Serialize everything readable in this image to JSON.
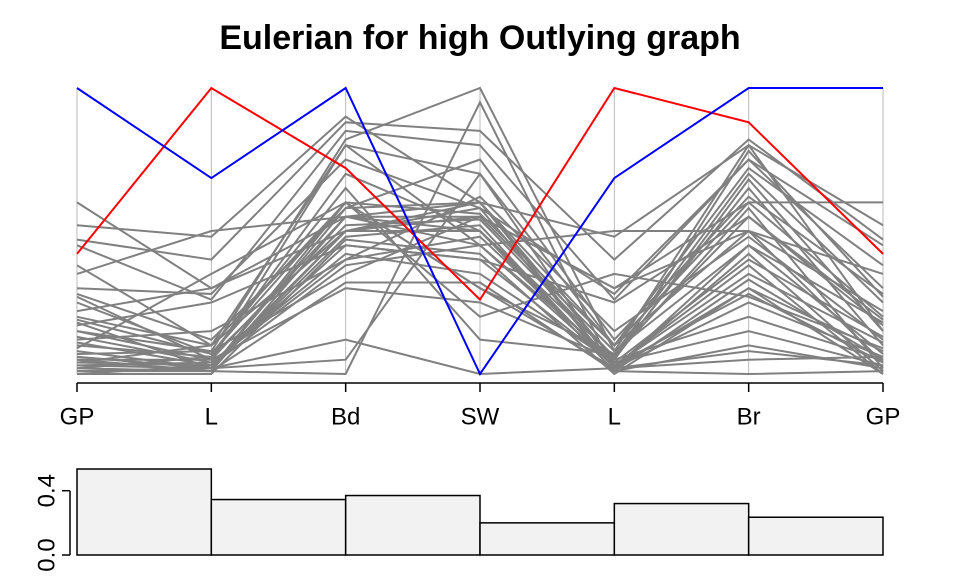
{
  "chart_data": [
    {
      "type": "parallel",
      "title": "Eulerian for high Outlying graph",
      "categories": [
        "GP",
        "L",
        "Bd",
        "SW",
        "L",
        "Br",
        "GP"
      ],
      "ylim": [
        0,
        1
      ],
      "series": [
        {
          "color": "#808080",
          "values": [
            0.6,
            0.3,
            0.5,
            0.55,
            0.3,
            0.6,
            0.6
          ]
        },
        {
          "color": "#808080",
          "values": [
            0.52,
            0.48,
            0.9,
            0.6,
            0.48,
            0.8,
            0.52
          ]
        },
        {
          "color": "#808080",
          "values": [
            0.47,
            0.4,
            0.88,
            0.85,
            0.4,
            0.82,
            0.47
          ]
        },
        {
          "color": "#808080",
          "values": [
            0.38,
            0.1,
            0.8,
            0.7,
            0.1,
            0.72,
            0.38
          ]
        },
        {
          "color": "#808080",
          "values": [
            0.3,
            0.28,
            0.75,
            0.58,
            0.28,
            0.75,
            0.3
          ]
        },
        {
          "color": "#808080",
          "values": [
            0.27,
            0.05,
            0.8,
            0.45,
            0.05,
            0.78,
            0.27
          ]
        },
        {
          "color": "#808080",
          "values": [
            0.25,
            0.07,
            0.6,
            0.3,
            0.07,
            0.7,
            0.25
          ]
        },
        {
          "color": "#808080",
          "values": [
            0.22,
            0.3,
            0.55,
            0.55,
            0.3,
            0.5,
            0.22
          ]
        },
        {
          "color": "#808080",
          "values": [
            0.2,
            0.1,
            0.5,
            0.6,
            0.1,
            0.6,
            0.2
          ]
        },
        {
          "color": "#808080",
          "values": [
            0.18,
            0.02,
            0.48,
            0.52,
            0.02,
            0.45,
            0.18
          ]
        },
        {
          "color": "#808080",
          "values": [
            0.17,
            0.25,
            0.45,
            0.4,
            0.25,
            0.55,
            0.17
          ]
        },
        {
          "color": "#808080",
          "values": [
            0.15,
            0.05,
            0.55,
            0.6,
            0.05,
            0.68,
            0.15
          ]
        },
        {
          "color": "#808080",
          "values": [
            0.13,
            0.04,
            0.42,
            0.35,
            0.04,
            0.4,
            0.13
          ]
        },
        {
          "color": "#808080",
          "values": [
            0.12,
            0.15,
            0.4,
            0.62,
            0.15,
            0.48,
            0.12
          ]
        },
        {
          "color": "#808080",
          "values": [
            0.11,
            0.03,
            0.38,
            0.45,
            0.03,
            0.35,
            0.11
          ]
        },
        {
          "color": "#808080",
          "values": [
            0.1,
            0.06,
            0.7,
            0.5,
            0.06,
            0.65,
            0.1
          ]
        },
        {
          "color": "#808080",
          "values": [
            0.08,
            0.02,
            0.6,
            0.3,
            0.02,
            0.3,
            0.08
          ]
        },
        {
          "color": "#808080",
          "values": [
            0.07,
            0.08,
            0.35,
            0.55,
            0.08,
            0.45,
            0.07
          ]
        },
        {
          "color": "#808080",
          "values": [
            0.06,
            0.02,
            0.5,
            0.58,
            0.02,
            0.25,
            0.06
          ]
        },
        {
          "color": "#808080",
          "values": [
            0.05,
            0.05,
            0.3,
            0.25,
            0.05,
            0.2,
            0.05
          ]
        },
        {
          "color": "#808080",
          "values": [
            0.05,
            0.01,
            0.55,
            0.5,
            0.01,
            0.33,
            0.05
          ]
        },
        {
          "color": "#808080",
          "values": [
            0.04,
            0.03,
            0.45,
            0.4,
            0.03,
            0.28,
            0.04
          ]
        },
        {
          "color": "#808080",
          "values": [
            0.04,
            0.1,
            0.6,
            0.56,
            0.1,
            0.5,
            0.04
          ]
        },
        {
          "color": "#808080",
          "values": [
            0.03,
            0.02,
            0.05,
            0.7,
            0.02,
            0.08,
            0.03
          ]
        },
        {
          "color": "#808080",
          "values": [
            0.03,
            0.04,
            0.4,
            0.48,
            0.04,
            0.15,
            0.03
          ]
        },
        {
          "color": "#808080",
          "values": [
            0.02,
            0.01,
            0.32,
            0.32,
            0.01,
            0.1,
            0.02
          ]
        },
        {
          "color": "#808080",
          "values": [
            0.02,
            0.06,
            0.52,
            0.54,
            0.06,
            0.58,
            0.02
          ]
        },
        {
          "color": "#808080",
          "values": [
            0.01,
            0.02,
            0.58,
            0.6,
            0.02,
            0.42,
            0.01
          ]
        },
        {
          "color": "#808080",
          "values": [
            0.01,
            0.01,
            0.0,
            0.95,
            0.01,
            0.0,
            0.01
          ]
        },
        {
          "color": "#808080",
          "values": [
            0.0,
            0.03,
            0.5,
            0.5,
            0.03,
            0.38,
            0.0
          ]
        },
        {
          "color": "#808080",
          "values": [
            0.0,
            0.0,
            0.47,
            0.42,
            0.0,
            0.3,
            0.0
          ]
        },
        {
          "color": "#808080",
          "values": [
            0.35,
            0.5,
            0.55,
            0.45,
            0.5,
            0.5,
            0.35
          ]
        },
        {
          "color": "#808080",
          "values": [
            0.09,
            0.35,
            0.6,
            0.2,
            0.35,
            0.27,
            0.09
          ]
        },
        {
          "color": "#808080",
          "values": [
            0.15,
            0.08,
            0.82,
            1.0,
            0.08,
            0.8,
            0.15
          ]
        },
        {
          "color": "#808080",
          "values": [
            0.28,
            0.12,
            0.58,
            0.75,
            0.12,
            0.62,
            0.28
          ]
        },
        {
          "color": "#808080",
          "values": [
            0.45,
            0.26,
            0.85,
            0.8,
            0.26,
            0.75,
            0.45
          ]
        },
        {
          "color": "#808080",
          "values": [
            0.06,
            0.02,
            0.12,
            0.0,
            0.02,
            0.05,
            0.06
          ]
        },
        {
          "color": "#808080",
          "values": [
            0.19,
            0.07,
            0.65,
            0.12,
            0.07,
            0.55,
            0.19
          ]
        },
        {
          "color": "#ff0000",
          "values": [
            0.42,
            1,
            0.72,
            0.26,
            1,
            0.88,
            0.42
          ]
        },
        {
          "color": "#0000ff",
          "values": [
            1,
            0.685,
            1,
            0,
            0.685,
            1,
            1
          ]
        }
      ]
    },
    {
      "type": "bar",
      "values": [
        0.535,
        0.345,
        0.37,
        0.2,
        0.32,
        0.235
      ],
      "color": "#f2f2f2",
      "ylim": [
        0,
        0.55
      ],
      "yticks": [
        {
          "value": 0,
          "label": "0.0"
        },
        0.4
      ]
    }
  ]
}
